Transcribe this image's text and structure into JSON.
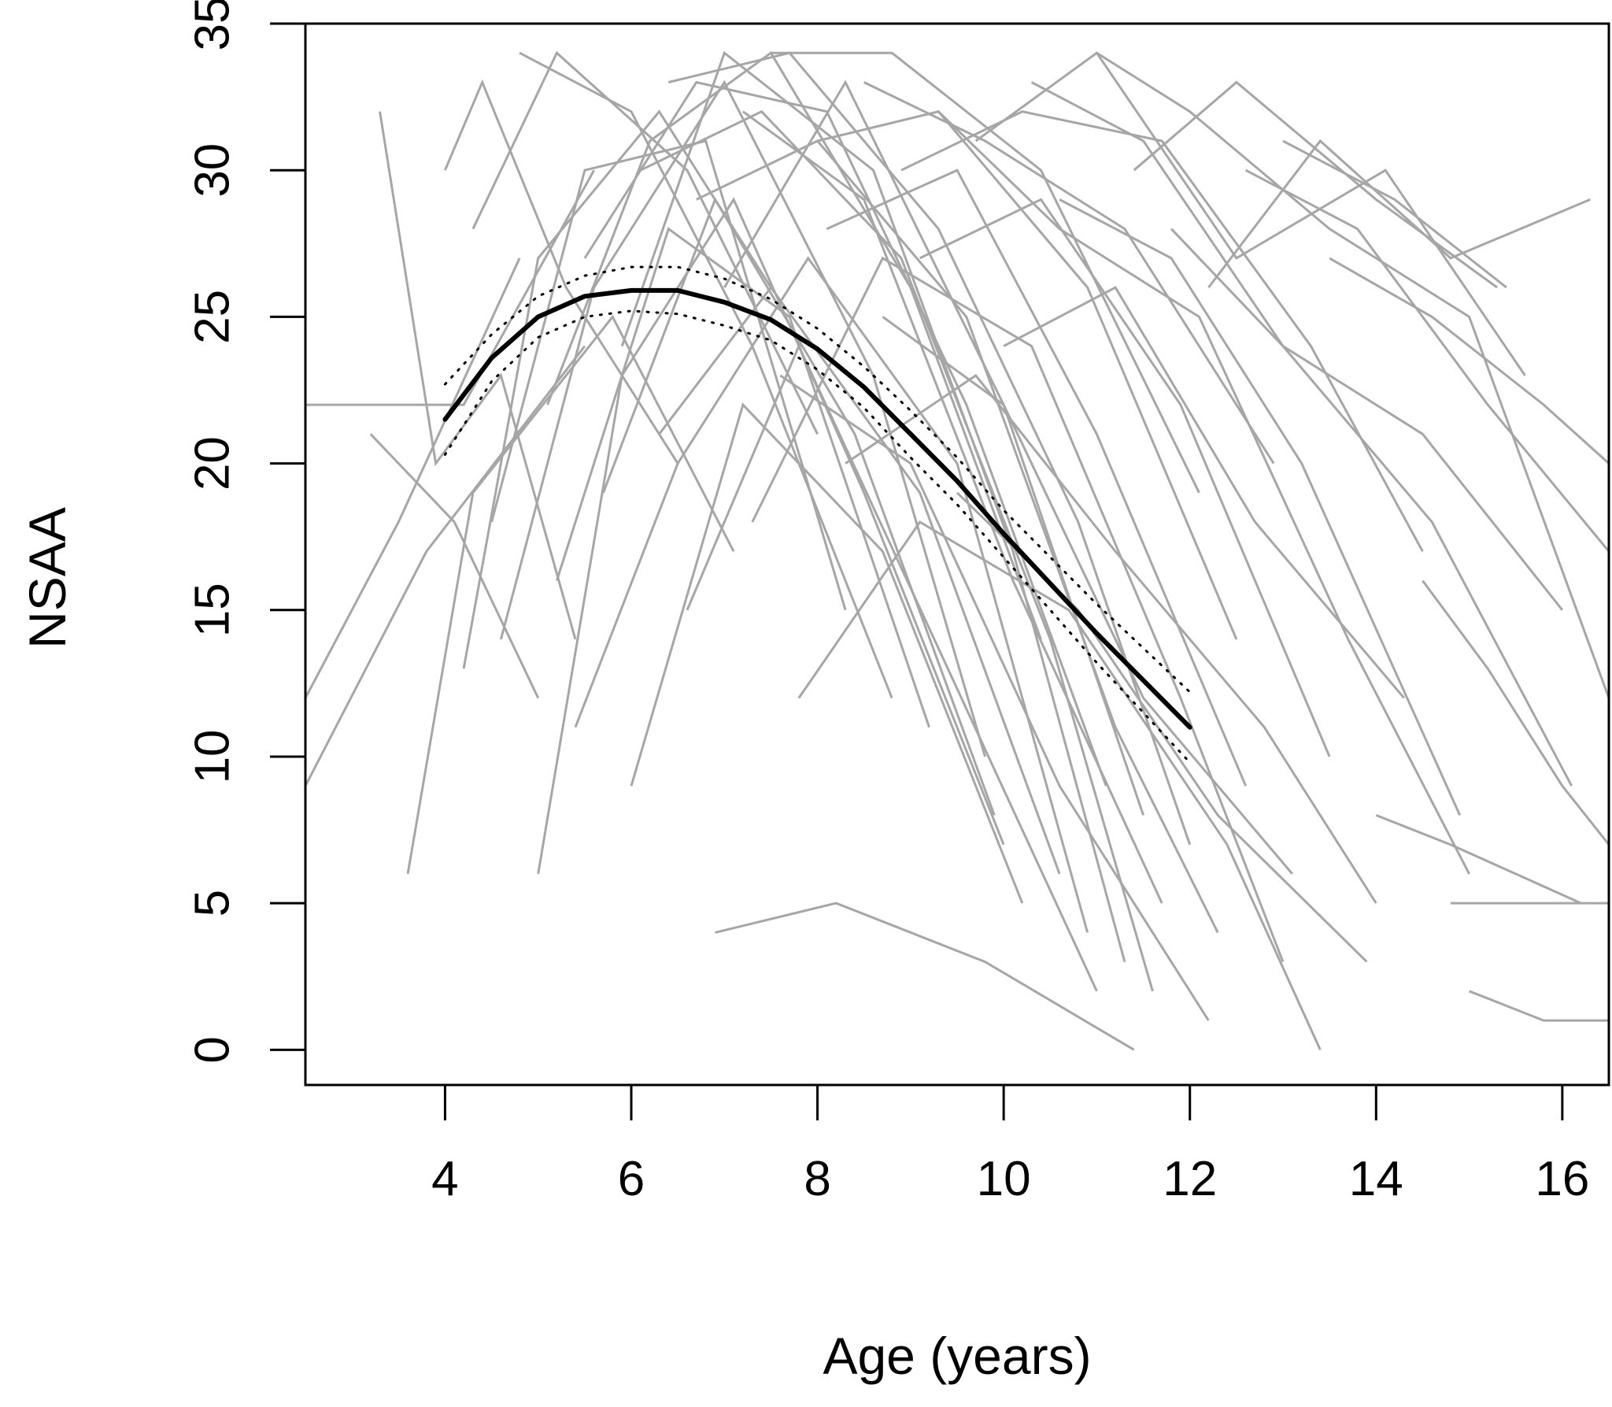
{
  "chart_data": {
    "type": "line",
    "title": "",
    "xlabel": "Age (years)",
    "ylabel": "NSAA",
    "xlim": [
      2.5,
      16.5
    ],
    "ylim": [
      -1.2,
      35
    ],
    "xticks": [
      4,
      6,
      8,
      10,
      12,
      14,
      16
    ],
    "yticks": [
      0,
      5,
      10,
      15,
      20,
      25,
      30,
      35
    ],
    "grid": false,
    "legend": "none",
    "colors": {
      "individual_trajectories": "#a6a6a6",
      "fitted_mean": "#000000",
      "confidence_band": "#000000"
    },
    "individual_trajectories": [
      {
        "x": [
          2.5,
          4.2,
          5.6
        ],
        "y": [
          22,
          22,
          30
        ]
      },
      {
        "x": [
          2.5,
          3.8,
          5.5
        ],
        "y": [
          9,
          17,
          24
        ]
      },
      {
        "x": [
          2.5,
          3.5,
          4.8
        ],
        "y": [
          12,
          18,
          27
        ]
      },
      {
        "x": [
          3.3,
          3.9,
          4.6,
          5.4
        ],
        "y": [
          32,
          20,
          23,
          14
        ]
      },
      {
        "x": [
          3.2,
          4.1,
          5.0
        ],
        "y": [
          21,
          18,
          12
        ]
      },
      {
        "x": [
          3.6,
          4.3,
          5.8,
          7.1
        ],
        "y": [
          6,
          19,
          25,
          17
        ]
      },
      {
        "x": [
          4.0,
          4.4,
          5.3,
          6.5
        ],
        "y": [
          30,
          33,
          26,
          20
        ]
      },
      {
        "x": [
          4.2,
          5.0,
          6.3,
          7.5
        ],
        "y": [
          13,
          27,
          32,
          26
        ]
      },
      {
        "x": [
          4.3,
          5.2,
          6.6,
          8.0
        ],
        "y": [
          28,
          34,
          30,
          21
        ]
      },
      {
        "x": [
          4.5,
          5.5,
          6.8,
          8.3
        ],
        "y": [
          18,
          30,
          31,
          15
        ]
      },
      {
        "x": [
          4.6,
          5.6,
          7.0,
          8.6,
          9.8
        ],
        "y": [
          14,
          26,
          33,
          23,
          10
        ]
      },
      {
        "x": [
          4.8,
          6.0,
          7.3,
          8.8
        ],
        "y": [
          34,
          32,
          24,
          12
        ]
      },
      {
        "x": [
          5.0,
          5.9,
          7.1,
          8.5,
          10.0
        ],
        "y": [
          6,
          23,
          29,
          19,
          7
        ]
      },
      {
        "x": [
          5.1,
          6.2,
          7.5,
          9.0,
          10.4
        ],
        "y": [
          22,
          31,
          34,
          26,
          14
        ]
      },
      {
        "x": [
          5.2,
          6.4,
          7.7,
          9.2
        ],
        "y": [
          16,
          28,
          25,
          11
        ]
      },
      {
        "x": [
          5.4,
          6.5,
          7.9,
          9.5,
          10.9
        ],
        "y": [
          11,
          20,
          27,
          20,
          4
        ]
      },
      {
        "x": [
          5.5,
          6.7,
          8.1,
          9.6,
          11.1
        ],
        "y": [
          27,
          33,
          32,
          22,
          9
        ]
      },
      {
        "x": [
          5.7,
          6.9,
          8.4,
          9.9
        ],
        "y": [
          19,
          29,
          21,
          8
        ]
      },
      {
        "x": [
          5.9,
          7.0,
          8.6,
          10.1,
          11.3
        ],
        "y": [
          24,
          34,
          30,
          17,
          3
        ]
      },
      {
        "x": [
          6.0,
          7.2,
          8.7,
          10.2
        ],
        "y": [
          9,
          22,
          17,
          5
        ]
      },
      {
        "x": [
          6.1,
          7.4,
          8.9,
          10.5,
          11.6
        ],
        "y": [
          30,
          32,
          27,
          14,
          2
        ]
      },
      {
        "x": [
          6.3,
          7.5,
          9.1,
          10.6
        ],
        "y": [
          21,
          26,
          19,
          6
        ]
      },
      {
        "x": [
          6.4,
          7.7,
          9.3,
          10.8,
          12.0
        ],
        "y": [
          33,
          34,
          28,
          18,
          7
        ]
      },
      {
        "x": [
          6.6,
          7.8,
          9.4,
          11.0
        ],
        "y": [
          15,
          24,
          13,
          2
        ]
      },
      {
        "x": [
          6.7,
          8.0,
          9.6,
          11.2,
          12.3
        ],
        "y": [
          29,
          31,
          25,
          11,
          4
        ]
      },
      {
        "x": [
          6.9,
          8.2,
          9.8,
          11.4
        ],
        "y": [
          4,
          5,
          3,
          0
        ]
      },
      {
        "x": [
          7.0,
          8.3,
          10.0,
          11.5
        ],
        "y": [
          26,
          33,
          22,
          8
        ]
      },
      {
        "x": [
          7.2,
          8.5,
          10.1,
          11.7
        ],
        "y": [
          32,
          29,
          16,
          5
        ]
      },
      {
        "x": [
          7.3,
          8.7,
          10.3,
          11.9,
          13.0
        ],
        "y": [
          18,
          27,
          24,
          12,
          3
        ]
      },
      {
        "x": [
          7.5,
          8.8,
          10.4,
          12.1
        ],
        "y": [
          34,
          34,
          30,
          19
        ]
      },
      {
        "x": [
          7.6,
          9.0,
          10.6,
          12.2
        ],
        "y": [
          23,
          20,
          9,
          1
        ]
      },
      {
        "x": [
          7.8,
          9.1,
          10.7,
          12.4,
          13.4
        ],
        "y": [
          12,
          18,
          15,
          7,
          0
        ]
      },
      {
        "x": [
          8.0,
          9.3,
          10.9,
          12.5
        ],
        "y": [
          31,
          32,
          26,
          14
        ]
      },
      {
        "x": [
          8.1,
          9.5,
          11.0,
          12.6
        ],
        "y": [
          28,
          30,
          21,
          9
        ]
      },
      {
        "x": [
          8.3,
          9.7,
          11.2,
          12.8,
          14.0
        ],
        "y": [
          20,
          23,
          17,
          11,
          5
        ]
      },
      {
        "x": [
          8.5,
          9.8,
          11.3,
          12.9
        ],
        "y": [
          33,
          31,
          28,
          20
        ]
      },
      {
        "x": [
          8.7,
          10.0,
          11.5,
          13.1
        ],
        "y": [
          25,
          22,
          12,
          6
        ]
      },
      {
        "x": [
          8.9,
          10.2,
          11.7,
          13.3,
          14.5
        ],
        "y": [
          30,
          32,
          31,
          24,
          17
        ]
      },
      {
        "x": [
          9.1,
          10.4,
          11.9,
          13.5
        ],
        "y": [
          27,
          29,
          22,
          10
        ]
      },
      {
        "x": [
          9.3,
          10.6,
          12.1,
          13.7,
          15.0
        ],
        "y": [
          32,
          28,
          25,
          14,
          6
        ]
      },
      {
        "x": [
          9.5,
          10.8,
          12.3,
          13.9
        ],
        "y": [
          19,
          15,
          8,
          3
        ]
      },
      {
        "x": [
          9.7,
          11.0,
          12.5,
          14.1,
          15.6
        ],
        "y": [
          31,
          34,
          27,
          30,
          23
        ]
      },
      {
        "x": [
          10.0,
          11.2,
          12.7,
          14.3
        ],
        "y": [
          24,
          26,
          18,
          12
        ]
      },
      {
        "x": [
          10.3,
          11.5,
          13.0,
          14.6,
          16.1
        ],
        "y": [
          33,
          31,
          24,
          18,
          9
        ]
      },
      {
        "x": [
          10.6,
          11.8,
          13.2,
          14.9
        ],
        "y": [
          29,
          27,
          20,
          8
        ]
      },
      {
        "x": [
          11.0,
          12.0,
          13.5,
          15.0,
          16.5
        ],
        "y": [
          34,
          32,
          28,
          25,
          12
        ]
      },
      {
        "x": [
          11.4,
          12.5,
          14.0,
          15.3
        ],
        "y": [
          30,
          33,
          29,
          26
        ]
      },
      {
        "x": [
          11.8,
          13.0,
          14.5,
          16.0
        ],
        "y": [
          28,
          24,
          21,
          15
        ]
      },
      {
        "x": [
          12.2,
          13.4,
          14.8,
          16.3
        ],
        "y": [
          26,
          31,
          27,
          29
        ]
      },
      {
        "x": [
          12.6,
          13.8,
          15.2,
          16.5
        ],
        "y": [
          30,
          28,
          22,
          17
        ]
      },
      {
        "x": [
          13.0,
          14.2,
          15.4
        ],
        "y": [
          31,
          29,
          26
        ]
      },
      {
        "x": [
          13.5,
          14.6,
          15.8,
          16.5
        ],
        "y": [
          27,
          25,
          22,
          20
        ]
      },
      {
        "x": [
          14.0,
          14.8,
          15.5,
          16.2
        ],
        "y": [
          8,
          7,
          6,
          5
        ]
      },
      {
        "x": [
          14.5,
          15.2,
          16.0,
          16.5
        ],
        "y": [
          16,
          13,
          9,
          7
        ]
      },
      {
        "x": [
          14.8,
          15.5,
          16.5
        ],
        "y": [
          5,
          5,
          5
        ]
      },
      {
        "x": [
          15.0,
          15.8,
          16.5
        ],
        "y": [
          2,
          1,
          1
        ]
      }
    ],
    "series": [
      {
        "x": [
          4.0,
          4.5,
          5.0,
          5.5,
          6.0,
          6.5,
          7.0,
          7.5,
          8.0,
          8.5,
          9.0,
          9.5,
          10.0,
          10.5,
          11.0,
          11.5,
          12.0
        ],
        "y": [
          21.5,
          23.6,
          25.0,
          25.7,
          25.9,
          25.9,
          25.5,
          24.9,
          23.9,
          22.6,
          21.0,
          19.4,
          17.6,
          15.9,
          14.2,
          12.6,
          11.0
        ],
        "style": "solid"
      },
      {
        "x": [
          4.0,
          4.5,
          5.0,
          5.5,
          6.0,
          6.5,
          7.0,
          7.5,
          8.0,
          8.5,
          9.0,
          9.5,
          10.0,
          10.5,
          11.0,
          11.5,
          12.0
        ],
        "y": [
          22.7,
          24.4,
          25.7,
          26.4,
          26.7,
          26.7,
          26.3,
          25.6,
          24.6,
          23.3,
          21.8,
          20.2,
          18.4,
          16.8,
          15.2,
          13.7,
          12.2
        ],
        "style": "dotted"
      },
      {
        "x": [
          4.0,
          4.5,
          5.0,
          5.5,
          6.0,
          6.5,
          7.0,
          7.5,
          8.0,
          8.5,
          9.0,
          9.5,
          10.0,
          10.5,
          11.0,
          11.5,
          12.0
        ],
        "y": [
          20.3,
          22.8,
          24.3,
          25.0,
          25.2,
          25.1,
          24.7,
          24.2,
          23.2,
          21.9,
          20.2,
          18.6,
          16.8,
          15.0,
          13.2,
          11.5,
          9.8
        ],
        "style": "dotted"
      }
    ]
  }
}
